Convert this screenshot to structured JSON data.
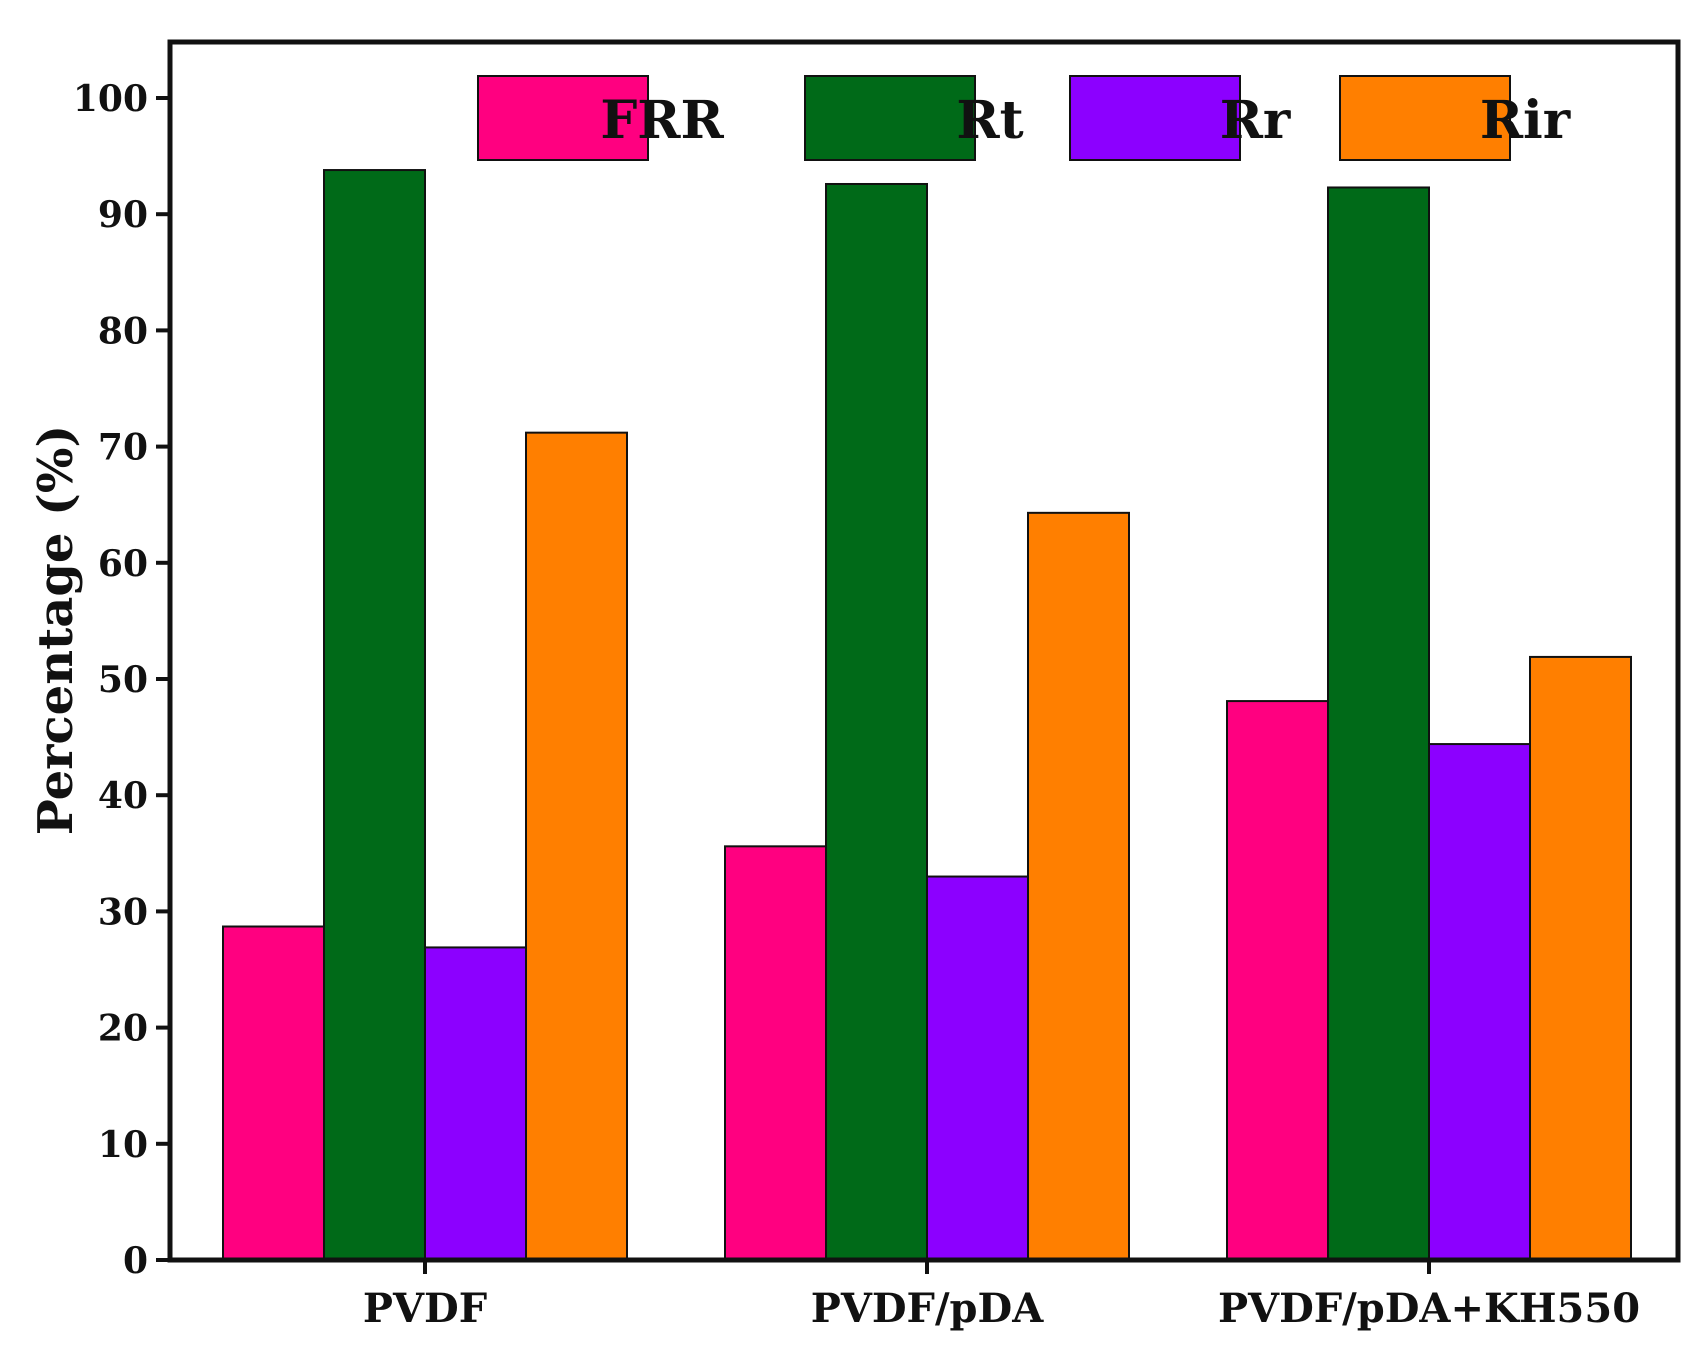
{
  "chart_data": {
    "type": "bar",
    "title": "",
    "xlabel": "",
    "ylabel": "Percentage (%)",
    "ylim": [
      0,
      105
    ],
    "yticks": [
      0,
      10,
      20,
      30,
      40,
      50,
      60,
      70,
      80,
      90,
      100
    ],
    "ytick_labels": [
      "0",
      "10",
      "20",
      "30",
      "40",
      "50",
      "60",
      "70",
      "80",
      "90",
      "100"
    ],
    "categories": [
      "PVDF",
      "PVDF/pDA",
      "PVDF/pDA+KH550"
    ],
    "series": [
      {
        "name": "FRR",
        "color": "#ff0080",
        "values": [
          28.7,
          35.6,
          48.1
        ]
      },
      {
        "name": "Rt",
        "color": "#006a18",
        "values": [
          93.8,
          92.6,
          92.3
        ]
      },
      {
        "name": "Rr",
        "color": "#8c00ff",
        "values": [
          26.9,
          33.0,
          44.4
        ]
      },
      {
        "name": "Rir",
        "color": "#ff7f00",
        "values": [
          71.2,
          64.3,
          51.9
        ]
      }
    ],
    "legend": {
      "position": "top-right",
      "columns": 4
    },
    "grid": false
  }
}
